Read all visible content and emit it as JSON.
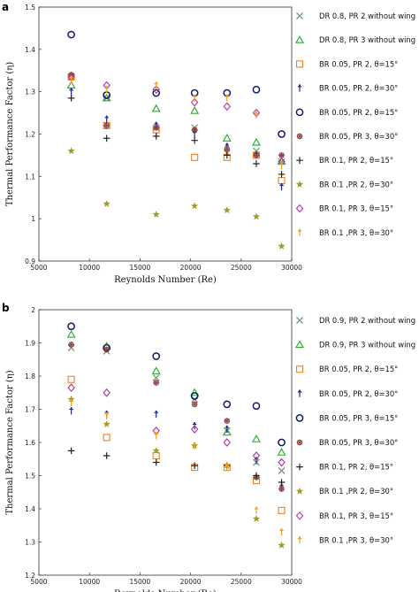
{
  "chart_data": [
    {
      "type": "scatter",
      "panel_label": "a",
      "xlabel": "Reynolds Number (Re)",
      "ylabel": "Thermal Performance Factor (η)",
      "xlim": [
        5000,
        30000
      ],
      "ylim": [
        0.9,
        1.5
      ],
      "x_ticks": [
        5000,
        10000,
        15000,
        20000,
        25000,
        30000
      ],
      "y_ticks": [
        0.9,
        1,
        1.1,
        1.2,
        1.3,
        1.4,
        1.5
      ],
      "grid": false,
      "legend_position": "right",
      "x": [
        8200,
        11700,
        16600,
        20400,
        23600,
        26500,
        29000
      ],
      "series": [
        {
          "name": "DR 0.8, PR 2 without wing",
          "color": "#7a9a7a",
          "marker": "x",
          "values": [
            1.335,
            1.285,
            1.215,
            1.215,
            1.155,
            1.16,
            1.135
          ]
        },
        {
          "name": "DR 0.8, PR 3 without wing",
          "color": "#22aa22",
          "marker": "triangle",
          "values": [
            1.315,
            1.285,
            1.26,
            1.255,
            1.19,
            1.18,
            1.135
          ]
        },
        {
          "name": "BR 0.05, PR 2, θ=15°",
          "color": "#f08020",
          "marker": "square",
          "values": [
            1.335,
            1.22,
            1.21,
            1.145,
            1.145,
            1.15,
            1.09
          ]
        },
        {
          "name": "BR 0.05, PR 2, θ=30°",
          "color": "#1a2a8a",
          "marker": "dagger",
          "values": [
            1.3,
            1.235,
            1.22,
            1.2,
            1.17,
            1.15,
            1.075
          ]
        },
        {
          "name": "BR 0.05, PR 2, θ=15°",
          "color": "#111a6e",
          "marker": "circle",
          "values": [
            1.435,
            1.292,
            1.297,
            1.297,
            1.297,
            1.305,
            1.2
          ]
        },
        {
          "name": "BR 0.05, PR 3, θ=30°",
          "color": "#8a3a3a",
          "marker": "asterisk",
          "values": [
            1.34,
            1.22,
            1.215,
            1.21,
            1.165,
            1.15,
            1.15
          ]
        },
        {
          "name": "BR 0.1, PR 2, θ=15°",
          "color": "#222222",
          "marker": "plus",
          "values": [
            1.285,
            1.19,
            1.195,
            1.185,
            1.15,
            1.13,
            1.105
          ]
        },
        {
          "name": "BR 0.1 ,PR 2, θ=30°",
          "color": "#a09a2a",
          "marker": "star",
          "values": [
            1.16,
            1.035,
            1.01,
            1.03,
            1.02,
            1.005,
            0.935
          ]
        },
        {
          "name": "BR 0.1, PR 3, θ=15°",
          "color": "#aa33aa",
          "marker": "diamond",
          "values": [
            1.335,
            1.315,
            1.305,
            1.275,
            1.265,
            1.25,
            1.135
          ]
        },
        {
          "name": "BR 0.1 ,PR 3, θ=30°",
          "color": "#f0a020",
          "marker": "dagger",
          "values": [
            1.33,
            1.305,
            1.315,
            1.285,
            1.285,
            1.245,
            1.125
          ]
        }
      ]
    },
    {
      "type": "scatter",
      "panel_label": "b",
      "xlabel": "Reynolds Number (Re)",
      "ylabel": "Thermal Performance Factor (η)",
      "xlim": [
        5000,
        30000
      ],
      "ylim": [
        1.2,
        2.0
      ],
      "x_ticks": [
        5000,
        10000,
        15000,
        20000,
        25000,
        30000
      ],
      "y_ticks": [
        1.2,
        1.3,
        1.4,
        1.5,
        1.6,
        1.7,
        1.8,
        1.9,
        2
      ],
      "grid": false,
      "legend_position": "right",
      "x": [
        8200,
        11700,
        16600,
        20400,
        23600,
        26500,
        29000
      ],
      "series": [
        {
          "name": "DR 0.9, PR 2 without wing",
          "color": "#7a9a7a",
          "marker": "x",
          "values": [
            1.885,
            1.875,
            1.795,
            1.73,
            1.635,
            1.54,
            1.515
          ]
        },
        {
          "name": "DR 0.9, PR 3 without wing",
          "color": "#22aa22",
          "marker": "triangle",
          "values": [
            1.925,
            1.89,
            1.815,
            1.75,
            1.63,
            1.61,
            1.57
          ]
        },
        {
          "name": "BR 0.05, PR 2, θ=15°",
          "color": "#f08020",
          "marker": "square",
          "values": [
            1.79,
            1.615,
            1.56,
            1.525,
            1.525,
            1.485,
            1.395
          ]
        },
        {
          "name": "BR 0.05, PR 2, θ=30°",
          "color": "#1a2a8a",
          "marker": "dagger",
          "values": [
            1.695,
            1.685,
            1.685,
            1.65,
            1.64,
            1.545,
            1.465
          ]
        },
        {
          "name": "BR 0.05, PR 3, θ=15°",
          "color": "#111a6e",
          "marker": "circle",
          "values": [
            1.95,
            1.885,
            1.86,
            1.74,
            1.715,
            1.71,
            1.6
          ]
        },
        {
          "name": "BR 0.05, PR 3, θ=30°",
          "color": "#8a3a3a",
          "marker": "asterisk",
          "values": [
            1.895,
            1.88,
            1.78,
            1.715,
            1.665,
            1.495,
            1.46
          ]
        },
        {
          "name": "BR 0.1, PR 2, θ=15°",
          "color": "#222222",
          "marker": "plus",
          "values": [
            1.575,
            1.56,
            1.54,
            1.53,
            1.53,
            1.5,
            1.48
          ]
        },
        {
          "name": "BR 0.1 ,PR 2, θ=30°",
          "color": "#a09a2a",
          "marker": "star",
          "values": [
            1.73,
            1.655,
            1.575,
            1.59,
            1.53,
            1.37,
            1.29
          ]
        },
        {
          "name": "BR 0.1, PR 3, θ=15°",
          "color": "#aa33aa",
          "marker": "diamond",
          "values": [
            1.765,
            1.75,
            1.635,
            1.64,
            1.6,
            1.56,
            1.54
          ]
        },
        {
          "name": "BR 0.1 ,PR 3, θ=30°",
          "color": "#f0a020",
          "marker": "dagger",
          "values": [
            1.72,
            1.68,
            1.62,
            1.59,
            1.525,
            1.395,
            1.33
          ]
        }
      ]
    }
  ]
}
